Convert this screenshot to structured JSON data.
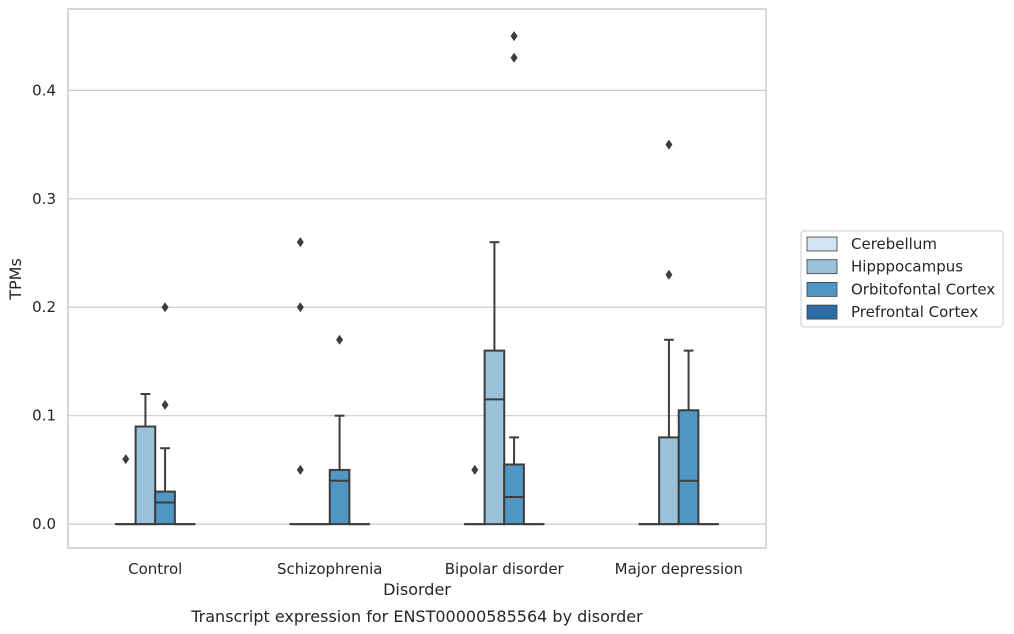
{
  "chart_data": {
    "type": "box",
    "title": "",
    "caption": "Transcript expression for ENST00000585564 by disorder",
    "xlabel": "Disorder",
    "ylabel": "TPMs",
    "ylim": [
      -0.022,
      0.475
    ],
    "yticks": [
      0.0,
      0.1,
      0.2,
      0.3,
      0.4
    ],
    "ytick_labels": [
      "0.0",
      "0.1",
      "0.2",
      "0.3",
      "0.4"
    ],
    "grid": "horizontal",
    "legend_position": "right",
    "categories": [
      "Control",
      "Schizophrenia",
      "Bipolar disorder",
      "Major depression"
    ],
    "series": [
      {
        "name": "Cerebellum",
        "color": "#d2e3f3",
        "boxes": [
          {
            "q1": 0,
            "median": 0,
            "q3": 0,
            "whisker_low": 0,
            "whisker_high": 0,
            "outliers": [
              0.06
            ]
          },
          {
            "q1": 0,
            "median": 0,
            "q3": 0,
            "whisker_low": 0,
            "whisker_high": 0,
            "outliers": [
              0.05,
              0.2,
              0.26
            ]
          },
          {
            "q1": 0,
            "median": 0,
            "q3": 0,
            "whisker_low": 0,
            "whisker_high": 0,
            "outliers": [
              0.05
            ]
          },
          {
            "q1": 0,
            "median": 0,
            "q3": 0,
            "whisker_low": 0,
            "whisker_high": 0,
            "outliers": []
          }
        ]
      },
      {
        "name": "Hipppocampus",
        "color": "#9ac2db",
        "boxes": [
          {
            "q1": 0,
            "median": 0,
            "q3": 0.09,
            "whisker_low": 0,
            "whisker_high": 0.12,
            "outliers": []
          },
          {
            "q1": 0,
            "median": 0,
            "q3": 0,
            "whisker_low": 0,
            "whisker_high": 0,
            "outliers": []
          },
          {
            "q1": 0,
            "median": 0.115,
            "q3": 0.16,
            "whisker_low": 0,
            "whisker_high": 0.26,
            "outliers": []
          },
          {
            "q1": 0,
            "median": 0,
            "q3": 0.08,
            "whisker_low": 0,
            "whisker_high": 0.17,
            "outliers": [
              0.23,
              0.35
            ]
          }
        ]
      },
      {
        "name": "Orbitofontal Cortex",
        "color": "#5096c4",
        "boxes": [
          {
            "q1": 0,
            "median": 0.02,
            "q3": 0.03,
            "whisker_low": 0,
            "whisker_high": 0.07,
            "outliers": [
              0.11,
              0.2
            ]
          },
          {
            "q1": 0,
            "median": 0.04,
            "q3": 0.05,
            "whisker_low": 0,
            "whisker_high": 0.1,
            "outliers": [
              0.17
            ]
          },
          {
            "q1": 0,
            "median": 0.025,
            "q3": 0.055,
            "whisker_low": 0,
            "whisker_high": 0.08,
            "outliers": [
              0.43,
              0.45
            ]
          },
          {
            "q1": 0,
            "median": 0.04,
            "q3": 0.105,
            "whisker_low": 0,
            "whisker_high": 0.16,
            "outliers": []
          }
        ]
      },
      {
        "name": "Prefrontal Cortex",
        "color": "#2b6ca4",
        "boxes": [
          {
            "q1": 0,
            "median": 0,
            "q3": 0,
            "whisker_low": 0,
            "whisker_high": 0,
            "outliers": []
          },
          {
            "q1": 0,
            "median": 0,
            "q3": 0,
            "whisker_low": 0,
            "whisker_high": 0,
            "outliers": []
          },
          {
            "q1": 0,
            "median": 0,
            "q3": 0,
            "whisker_low": 0,
            "whisker_high": 0,
            "outliers": []
          },
          {
            "q1": 0,
            "median": 0,
            "q3": 0,
            "whisker_low": 0,
            "whisker_high": 0,
            "outliers": []
          }
        ]
      }
    ]
  }
}
